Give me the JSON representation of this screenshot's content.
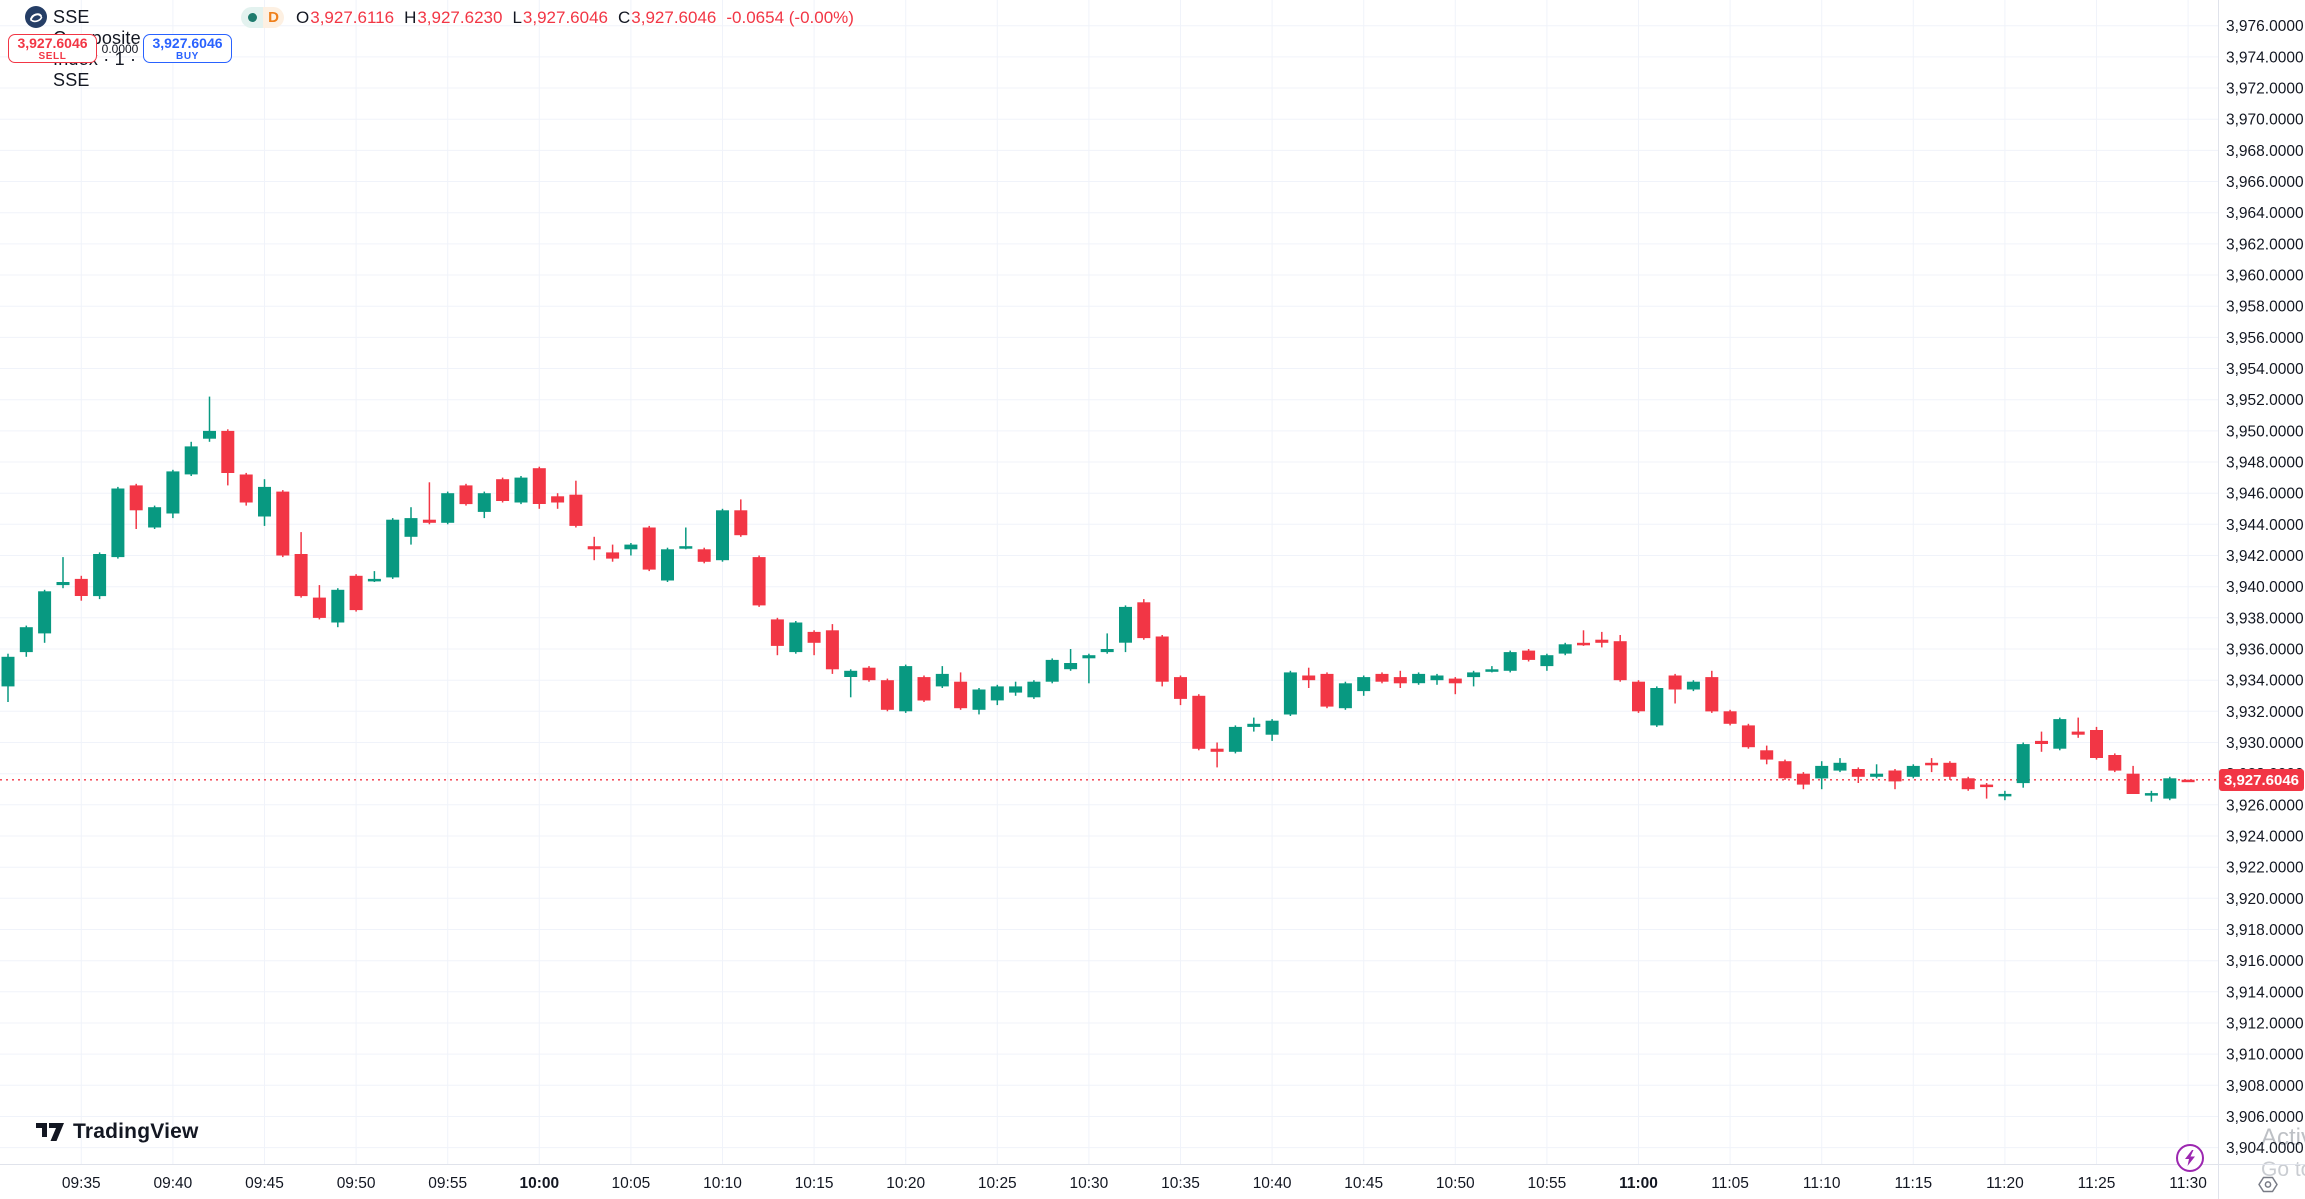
{
  "header": {
    "symbol_title": "SSE Composite Index · 1 · SSE",
    "market_status_dot_color": "#1e7b6d",
    "delayed_badge": "D",
    "delayed_badge_color": "#ef7f1a",
    "ohlc": {
      "o_label": "O",
      "o": "3,927.6116",
      "h_label": "H",
      "h": "3,927.6230",
      "l_label": "L",
      "l": "3,927.6046",
      "c_label": "C",
      "c": "3,927.6046",
      "change": "-0.0654 (-0.00%)",
      "value_color": "#f23645"
    }
  },
  "trade_panel": {
    "sell_price": "3,927.6046",
    "sell_label": "SELL",
    "spread": "0.0000",
    "buy_price": "3,927.6046",
    "buy_label": "BUY",
    "sell_color": "#f23645",
    "buy_color": "#2962ff"
  },
  "footer": {
    "tv_logo_text": "TradingView"
  },
  "watermark": {
    "line1": "Activa",
    "line2": "Go to S"
  },
  "last_price_label": "3,927.6046",
  "chart_data": {
    "type": "candlestick",
    "title": "SSE Composite Index",
    "interval": "1",
    "exchange": "SSE",
    "up_color": "#089981",
    "down_color": "#f23645",
    "grid": true,
    "grid_color": "#f0f3fa",
    "axis_text_color": "#131722",
    "price_axis": {
      "side": "right",
      "visible_min": 3902.95,
      "visible_max": 3977.65,
      "tick_step": 2,
      "labels": [
        {
          "text": "3,904.0000",
          "value": 3904
        },
        {
          "text": "3,906.0000",
          "value": 3906
        },
        {
          "text": "3,908.0000",
          "value": 3908
        },
        {
          "text": "3,910.0000",
          "value": 3910
        },
        {
          "text": "3,912.0000",
          "value": 3912
        },
        {
          "text": "3,914.0000",
          "value": 3914
        },
        {
          "text": "3,916.0000",
          "value": 3916
        },
        {
          "text": "3,918.0000",
          "value": 3918
        },
        {
          "text": "3,920.0000",
          "value": 3920
        },
        {
          "text": "3,922.0000",
          "value": 3922
        },
        {
          "text": "3,924.0000",
          "value": 3924
        },
        {
          "text": "3,926.0000",
          "value": 3926
        },
        {
          "text": "3,928.0000",
          "value": 3928
        },
        {
          "text": "3,930.0000",
          "value": 3930
        },
        {
          "text": "3,932.0000",
          "value": 3932
        },
        {
          "text": "3,934.0000",
          "value": 3934
        },
        {
          "text": "3,936.0000",
          "value": 3936
        },
        {
          "text": "3,938.0000",
          "value": 3938
        },
        {
          "text": "3,940.0000",
          "value": 3940
        },
        {
          "text": "3,942.0000",
          "value": 3942
        },
        {
          "text": "3,944.0000",
          "value": 3944
        },
        {
          "text": "3,946.0000",
          "value": 3946
        },
        {
          "text": "3,948.0000",
          "value": 3948
        },
        {
          "text": "3,950.0000",
          "value": 3950
        },
        {
          "text": "3,952.0000",
          "value": 3952
        },
        {
          "text": "3,954.0000",
          "value": 3954
        },
        {
          "text": "3,956.0000",
          "value": 3956
        },
        {
          "text": "3,958.0000",
          "value": 3958
        },
        {
          "text": "3,960.0000",
          "value": 3960
        },
        {
          "text": "3,962.0000",
          "value": 3962
        },
        {
          "text": "3,964.0000",
          "value": 3964
        },
        {
          "text": "3,966.0000",
          "value": 3966
        },
        {
          "text": "3,968.0000",
          "value": 3968
        },
        {
          "text": "3,970.0000",
          "value": 3970
        },
        {
          "text": "3,972.0000",
          "value": 3972
        },
        {
          "text": "3,974.0000",
          "value": 3974
        },
        {
          "text": "3,976.0000",
          "value": 3976
        }
      ]
    },
    "time_axis": {
      "ticks": [
        {
          "label": "09:35",
          "index": 4,
          "bold": false
        },
        {
          "label": "09:40",
          "index": 9,
          "bold": false
        },
        {
          "label": "09:45",
          "index": 14,
          "bold": false
        },
        {
          "label": "09:50",
          "index": 19,
          "bold": false
        },
        {
          "label": "09:55",
          "index": 24,
          "bold": false
        },
        {
          "label": "10:00",
          "index": 29,
          "bold": true
        },
        {
          "label": "10:05",
          "index": 34,
          "bold": false
        },
        {
          "label": "10:10",
          "index": 39,
          "bold": false
        },
        {
          "label": "10:15",
          "index": 44,
          "bold": false
        },
        {
          "label": "10:20",
          "index": 49,
          "bold": false
        },
        {
          "label": "10:25",
          "index": 54,
          "bold": false
        },
        {
          "label": "10:30",
          "index": 59,
          "bold": false
        },
        {
          "label": "10:35",
          "index": 64,
          "bold": false
        },
        {
          "label": "10:40",
          "index": 69,
          "bold": false
        },
        {
          "label": "10:45",
          "index": 74,
          "bold": false
        },
        {
          "label": "10:50",
          "index": 79,
          "bold": false
        },
        {
          "label": "10:55",
          "index": 84,
          "bold": false
        },
        {
          "label": "11:00",
          "index": 89,
          "bold": true
        },
        {
          "label": "11:05",
          "index": 94,
          "bold": false
        },
        {
          "label": "11:10",
          "index": 99,
          "bold": false
        },
        {
          "label": "11:15",
          "index": 104,
          "bold": false
        },
        {
          "label": "11:20",
          "index": 109,
          "bold": false
        },
        {
          "label": "11:25",
          "index": 114,
          "bold": false
        },
        {
          "label": "11:30",
          "index": 119,
          "bold": false
        }
      ]
    },
    "last_price": {
      "value": 3927.6046,
      "label": "3,927.6046",
      "color": "#f23645",
      "line_style": "dotted"
    },
    "candles": [
      [
        "09:31",
        3933.6,
        3935.7,
        3932.6,
        3935.5
      ],
      [
        "09:32",
        3935.8,
        3937.5,
        3935.5,
        3937.4
      ],
      [
        "09:33",
        3937.0,
        3939.8,
        3936.4,
        3939.7
      ],
      [
        "09:34",
        3940.1,
        3941.9,
        3939.9,
        3940.3
      ],
      [
        "09:35",
        3940.5,
        3940.7,
        3939.1,
        3939.4
      ],
      [
        "09:36",
        3939.4,
        3942.2,
        3939.2,
        3942.1
      ],
      [
        "09:37",
        3941.9,
        3946.4,
        3941.8,
        3946.3
      ],
      [
        "09:38",
        3946.5,
        3946.6,
        3943.7,
        3944.9
      ],
      [
        "09:39",
        3943.8,
        3945.2,
        3943.7,
        3945.1
      ],
      [
        "09:40",
        3944.7,
        3947.5,
        3944.4,
        3947.4
      ],
      [
        "09:41",
        3947.2,
        3949.3,
        3947.1,
        3949.0
      ],
      [
        "09:42",
        3949.5,
        3952.2,
        3949.3,
        3950.0
      ],
      [
        "09:43",
        3950.0,
        3950.1,
        3946.5,
        3947.3
      ],
      [
        "09:44",
        3947.2,
        3947.3,
        3945.2,
        3945.4
      ],
      [
        "09:45",
        3944.5,
        3946.9,
        3943.9,
        3946.4
      ],
      [
        "09:46",
        3946.1,
        3946.2,
        3941.9,
        3942.0
      ],
      [
        "09:47",
        3942.1,
        3943.5,
        3939.3,
        3939.4
      ],
      [
        "09:48",
        3939.3,
        3940.1,
        3937.9,
        3938.0
      ],
      [
        "09:49",
        3937.7,
        3939.9,
        3937.4,
        3939.8
      ],
      [
        "09:50",
        3940.7,
        3940.8,
        3938.4,
        3938.5
      ],
      [
        "09:51",
        3940.4,
        3941.0,
        3940.3,
        3940.5
      ],
      [
        "09:52",
        3940.6,
        3944.4,
        3940.5,
        3944.3
      ],
      [
        "09:53",
        3943.2,
        3945.1,
        3942.7,
        3944.4
      ],
      [
        "09:54",
        3944.3,
        3946.7,
        3944.0,
        3944.1
      ],
      [
        "09:55",
        3944.1,
        3946.1,
        3944.0,
        3946.0
      ],
      [
        "09:56",
        3946.5,
        3946.6,
        3945.2,
        3945.3
      ],
      [
        "09:57",
        3944.8,
        3946.1,
        3944.4,
        3946.0
      ],
      [
        "09:58",
        3946.9,
        3947.0,
        3945.4,
        3945.5
      ],
      [
        "09:59",
        3945.4,
        3947.1,
        3945.3,
        3947.0
      ],
      [
        "10:00",
        3947.6,
        3947.7,
        3945.0,
        3945.3
      ],
      [
        "10:01",
        3945.8,
        3946.0,
        3945.0,
        3945.4
      ],
      [
        "10:02",
        3945.9,
        3946.8,
        3943.8,
        3943.9
      ],
      [
        "10:03",
        3942.6,
        3943.2,
        3941.7,
        3942.4
      ],
      [
        "10:04",
        3942.2,
        3942.7,
        3941.6,
        3941.8
      ],
      [
        "10:05",
        3942.4,
        3942.8,
        3942.0,
        3942.7
      ],
      [
        "10:06",
        3943.8,
        3943.9,
        3941.0,
        3941.1
      ],
      [
        "10:07",
        3940.4,
        3942.5,
        3940.3,
        3942.4
      ],
      [
        "10:08",
        3942.5,
        3943.8,
        3942.4,
        3942.6
      ],
      [
        "10:09",
        3942.4,
        3942.5,
        3941.5,
        3941.6
      ],
      [
        "10:10",
        3941.7,
        3945.0,
        3941.6,
        3944.9
      ],
      [
        "10:11",
        3944.9,
        3945.6,
        3943.2,
        3943.3
      ],
      [
        "10:12",
        3941.9,
        3942.0,
        3938.7,
        3938.8
      ],
      [
        "10:13",
        3937.9,
        3938.0,
        3935.6,
        3936.2
      ],
      [
        "10:14",
        3935.8,
        3937.8,
        3935.7,
        3937.7
      ],
      [
        "10:15",
        3937.1,
        3937.2,
        3935.6,
        3936.4
      ],
      [
        "10:16",
        3937.2,
        3937.6,
        3934.4,
        3934.7
      ],
      [
        "10:17",
        3934.2,
        3934.7,
        3932.9,
        3934.6
      ],
      [
        "10:18",
        3934.8,
        3934.9,
        3933.9,
        3934.0
      ],
      [
        "10:19",
        3934.0,
        3934.1,
        3932.0,
        3932.1
      ],
      [
        "10:20",
        3932.0,
        3935.0,
        3931.9,
        3934.9
      ],
      [
        "10:21",
        3934.2,
        3934.3,
        3932.6,
        3932.7
      ],
      [
        "10:22",
        3933.6,
        3934.9,
        3933.5,
        3934.4
      ],
      [
        "10:23",
        3933.9,
        3934.5,
        3932.1,
        3932.2
      ],
      [
        "10:24",
        3932.1,
        3933.5,
        3931.8,
        3933.4
      ],
      [
        "10:25",
        3932.7,
        3933.7,
        3932.4,
        3933.6
      ],
      [
        "10:26",
        3933.2,
        3933.9,
        3933.0,
        3933.6
      ],
      [
        "10:27",
        3932.9,
        3934.0,
        3932.8,
        3933.9
      ],
      [
        "10:28",
        3933.9,
        3935.4,
        3933.8,
        3935.3
      ],
      [
        "10:29",
        3934.7,
        3936.0,
        3934.6,
        3935.1
      ],
      [
        "10:30",
        3935.4,
        3935.7,
        3933.8,
        3935.6
      ],
      [
        "10:31",
        3935.8,
        3937.0,
        3935.7,
        3936.0
      ],
      [
        "10:32",
        3936.4,
        3938.8,
        3935.8,
        3938.7
      ],
      [
        "10:33",
        3939.0,
        3939.2,
        3936.6,
        3936.7
      ],
      [
        "10:34",
        3936.8,
        3936.9,
        3933.6,
        3933.9
      ],
      [
        "10:35",
        3934.2,
        3934.3,
        3932.4,
        3932.8
      ],
      [
        "10:36",
        3933.0,
        3933.1,
        3929.5,
        3929.6
      ],
      [
        "10:37",
        3929.6,
        3930.0,
        3928.4,
        3929.4
      ],
      [
        "10:38",
        3929.4,
        3931.1,
        3929.3,
        3931.0
      ],
      [
        "10:39",
        3931.0,
        3931.6,
        3930.7,
        3931.2
      ],
      [
        "10:40",
        3930.5,
        3931.5,
        3930.1,
        3931.4
      ],
      [
        "10:41",
        3931.8,
        3934.6,
        3931.7,
        3934.5
      ],
      [
        "10:42",
        3934.3,
        3934.8,
        3933.5,
        3934.0
      ],
      [
        "10:43",
        3934.4,
        3934.5,
        3932.2,
        3932.3
      ],
      [
        "10:44",
        3932.2,
        3933.9,
        3932.1,
        3933.8
      ],
      [
        "10:45",
        3933.3,
        3934.3,
        3933.0,
        3934.2
      ],
      [
        "10:46",
        3934.4,
        3934.5,
        3933.8,
        3933.9
      ],
      [
        "10:47",
        3934.2,
        3934.6,
        3933.5,
        3933.8
      ],
      [
        "10:48",
        3933.8,
        3934.5,
        3933.7,
        3934.4
      ],
      [
        "10:49",
        3934.0,
        3934.4,
        3933.7,
        3934.3
      ],
      [
        "10:50",
        3934.1,
        3934.2,
        3933.1,
        3933.8
      ],
      [
        "10:51",
        3934.2,
        3934.6,
        3933.6,
        3934.5
      ],
      [
        "10:52",
        3934.6,
        3934.9,
        3934.5,
        3934.7
      ],
      [
        "10:53",
        3934.6,
        3935.9,
        3934.5,
        3935.8
      ],
      [
        "10:54",
        3935.9,
        3936.0,
        3935.2,
        3935.3
      ],
      [
        "10:55",
        3934.9,
        3935.7,
        3934.6,
        3935.6
      ],
      [
        "10:56",
        3935.7,
        3936.4,
        3935.6,
        3936.3
      ],
      [
        "10:57",
        3936.4,
        3937.2,
        3936.2,
        3936.3
      ],
      [
        "10:58",
        3936.6,
        3937.1,
        3936.1,
        3936.4
      ],
      [
        "10:59",
        3936.5,
        3936.9,
        3933.9,
        3934.0
      ],
      [
        "11:00",
        3933.9,
        3934.0,
        3931.9,
        3932.0
      ],
      [
        "11:01",
        3931.1,
        3933.6,
        3931.0,
        3933.5
      ],
      [
        "11:02",
        3934.3,
        3934.4,
        3932.5,
        3933.4
      ],
      [
        "11:03",
        3933.4,
        3934.0,
        3933.3,
        3933.9
      ],
      [
        "11:04",
        3934.2,
        3934.6,
        3931.9,
        3932.0
      ],
      [
        "11:05",
        3932.0,
        3932.1,
        3931.1,
        3931.2
      ],
      [
        "11:06",
        3931.1,
        3931.2,
        3929.6,
        3929.7
      ],
      [
        "11:07",
        3929.5,
        3929.8,
        3928.6,
        3928.9
      ],
      [
        "11:08",
        3928.8,
        3928.9,
        3927.6,
        3927.7
      ],
      [
        "11:09",
        3928.0,
        3928.1,
        3927.0,
        3927.3
      ],
      [
        "11:10",
        3927.7,
        3928.8,
        3927.0,
        3928.5
      ],
      [
        "11:11",
        3928.2,
        3929.0,
        3928.1,
        3928.7
      ],
      [
        "11:12",
        3928.3,
        3928.4,
        3927.4,
        3927.8
      ],
      [
        "11:13",
        3927.8,
        3928.6,
        3927.7,
        3928.0
      ],
      [
        "11:14",
        3928.2,
        3928.3,
        3927.0,
        3927.5
      ],
      [
        "11:15",
        3927.8,
        3928.6,
        3927.7,
        3928.5
      ],
      [
        "11:16",
        3928.7,
        3929.0,
        3928.1,
        3928.6
      ],
      [
        "11:17",
        3928.7,
        3928.8,
        3927.6,
        3927.8
      ],
      [
        "11:18",
        3927.7,
        3927.8,
        3926.9,
        3927.0
      ],
      [
        "11:19",
        3927.3,
        3927.4,
        3926.4,
        3927.2
      ],
      [
        "11:20",
        3926.6,
        3926.9,
        3926.3,
        3926.7
      ],
      [
        "11:21",
        3927.4,
        3930.0,
        3927.1,
        3929.9
      ],
      [
        "11:22",
        3930.1,
        3930.7,
        3929.4,
        3929.9
      ],
      [
        "11:23",
        3929.6,
        3931.6,
        3929.5,
        3931.5
      ],
      [
        "11:24",
        3930.7,
        3931.6,
        3930.3,
        3930.5
      ],
      [
        "11:25",
        3930.8,
        3931.0,
        3928.9,
        3929.0
      ],
      [
        "11:26",
        3929.2,
        3929.3,
        3928.1,
        3928.2
      ],
      [
        "11:27",
        3928.0,
        3928.5,
        3926.7,
        3926.7
      ],
      [
        "11:28",
        3926.65,
        3926.9,
        3926.2,
        3926.75
      ],
      [
        "11:29",
        3926.4,
        3927.8,
        3926.3,
        3927.7
      ],
      [
        "11:30",
        3927.6116,
        3927.623,
        3927.6046,
        3927.6046
      ]
    ]
  }
}
